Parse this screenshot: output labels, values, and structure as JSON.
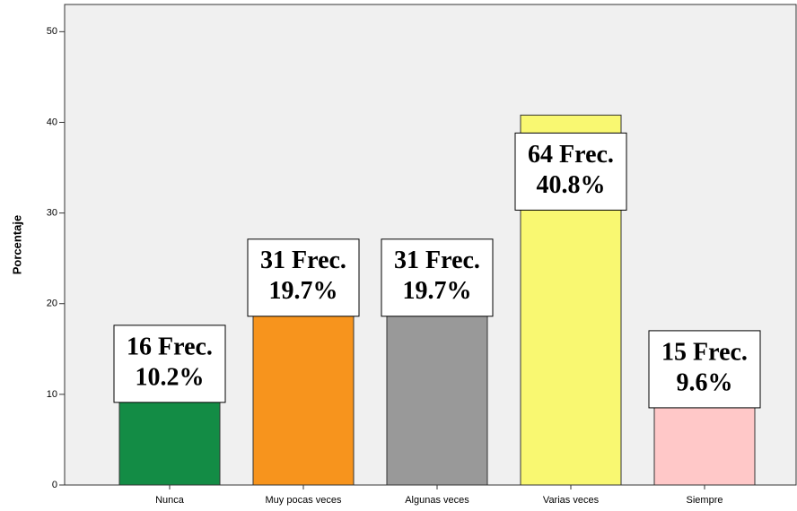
{
  "chart_data": {
    "type": "bar",
    "y_label": "Porcentaje",
    "categories": [
      "Nunca",
      "Muy pocas veces",
      "Algunas veces",
      "Varias veces",
      "Siempre"
    ],
    "values": [
      10.2,
      19.7,
      19.7,
      40.8,
      9.6
    ],
    "value_labels": [
      "10.2%",
      "19.7%",
      "19.7%",
      "40.8%",
      "9.6%"
    ],
    "count_labels": [
      "16 Frec.",
      "31 Frec.",
      "31 Frec.",
      "64 Frec.",
      "15 Frec."
    ],
    "colors": [
      "#138c45",
      "#f7941d",
      "#999999",
      "#f9f871",
      "#ffc8c8"
    ],
    "ylim": [
      0,
      53
    ],
    "yticks": [
      0,
      10,
      20,
      30,
      40,
      50
    ]
  }
}
